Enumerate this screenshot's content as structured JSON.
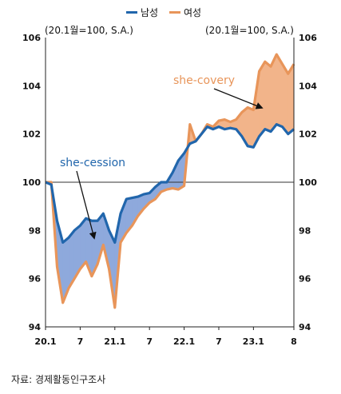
{
  "chart_data": {
    "type": "line",
    "legend": {
      "position": "top-center"
    },
    "y_left_label": "(20.1월=100, S.A.)",
    "y_right_label": "(20.1월=100, S.A.)",
    "ylim": [
      94,
      106
    ],
    "y_ticks": [
      "94",
      "96",
      "98",
      "100",
      "102",
      "104",
      "106"
    ],
    "x_ticks": [
      {
        "index": 0,
        "label": "20.1"
      },
      {
        "index": 6,
        "label": "7"
      },
      {
        "index": 12,
        "label": "21.1"
      },
      {
        "index": 18,
        "label": "7"
      },
      {
        "index": 24,
        "label": "22.1"
      },
      {
        "index": 30,
        "label": "7"
      },
      {
        "index": 36,
        "label": "23.1"
      },
      {
        "index": 43,
        "label": "8"
      }
    ],
    "reference_line": 100,
    "series": [
      {
        "name": "남성",
        "color": "#2166ac",
        "values": [
          100.0,
          99.9,
          98.4,
          97.5,
          97.7,
          98.0,
          98.2,
          98.5,
          98.4,
          98.4,
          98.7,
          98.0,
          97.5,
          98.7,
          99.3,
          99.35,
          99.4,
          99.5,
          99.55,
          99.8,
          100.0,
          100.0,
          100.4,
          100.9,
          101.2,
          101.6,
          101.7,
          102.0,
          102.3,
          102.2,
          102.3,
          102.2,
          102.25,
          102.2,
          101.9,
          101.5,
          101.45,
          101.9,
          102.2,
          102.1,
          102.4,
          102.3,
          102.0,
          102.2
        ]
      },
      {
        "name": "여성",
        "color": "#e8955a",
        "values": [
          100.0,
          100.0,
          96.5,
          95.0,
          95.6,
          96.0,
          96.4,
          96.7,
          96.1,
          96.6,
          97.4,
          96.4,
          94.8,
          97.5,
          97.9,
          98.2,
          98.6,
          98.9,
          99.15,
          99.3,
          99.6,
          99.7,
          99.75,
          99.7,
          99.85,
          102.4,
          101.7,
          102.0,
          102.4,
          102.3,
          102.55,
          102.6,
          102.5,
          102.6,
          102.9,
          103.1,
          103.0,
          104.6,
          105.0,
          104.8,
          105.3,
          104.9,
          104.5,
          104.9
        ]
      }
    ],
    "annotations": [
      {
        "text": "she-cession",
        "color": "#2166ac"
      },
      {
        "text": "she-covery",
        "color": "#e8955a"
      }
    ],
    "colors": {
      "male_line": "#2166ac",
      "female_line": "#e8955a",
      "gap_male_above": "#8ea9dc",
      "gap_female_above": "#f2b48a"
    }
  },
  "source_note": "자료: 경제활동인구조사"
}
